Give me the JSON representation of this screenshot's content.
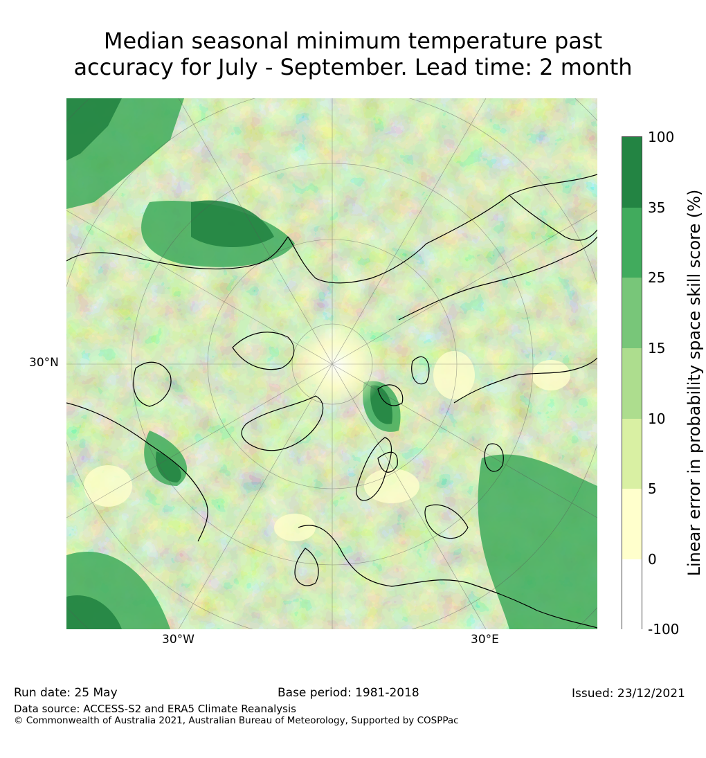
{
  "title_line1": "Median seasonal minimum temperature past",
  "title_line2": "accuracy for July - September. Lead time: 2 month",
  "map": {
    "lat_label": "30°N",
    "lon_label_west": "30°W",
    "lon_label_east": "30°E"
  },
  "colorbar": {
    "label": "Linear error in probability space skill score (%)",
    "ticks": [
      "100",
      "35",
      "25",
      "15",
      "10",
      "5",
      "0",
      "-100"
    ],
    "colors": [
      "#238443",
      "#41ab5d",
      "#78c679",
      "#addd8e",
      "#d9f0a3",
      "#ffffcc",
      "#ffffff"
    ]
  },
  "footer": {
    "run_date": "Run date: 25 May",
    "base_period": "Base period: 1981-2018",
    "issued": "Issued: 23/12/2021",
    "data_source": "Data source: ACCESS-S2 and ERA5 Climate Reanalysis",
    "copyright": "© Commonwealth of Australia 2021, Australian Bureau of Meteorology, Supported by COSPPac"
  }
}
